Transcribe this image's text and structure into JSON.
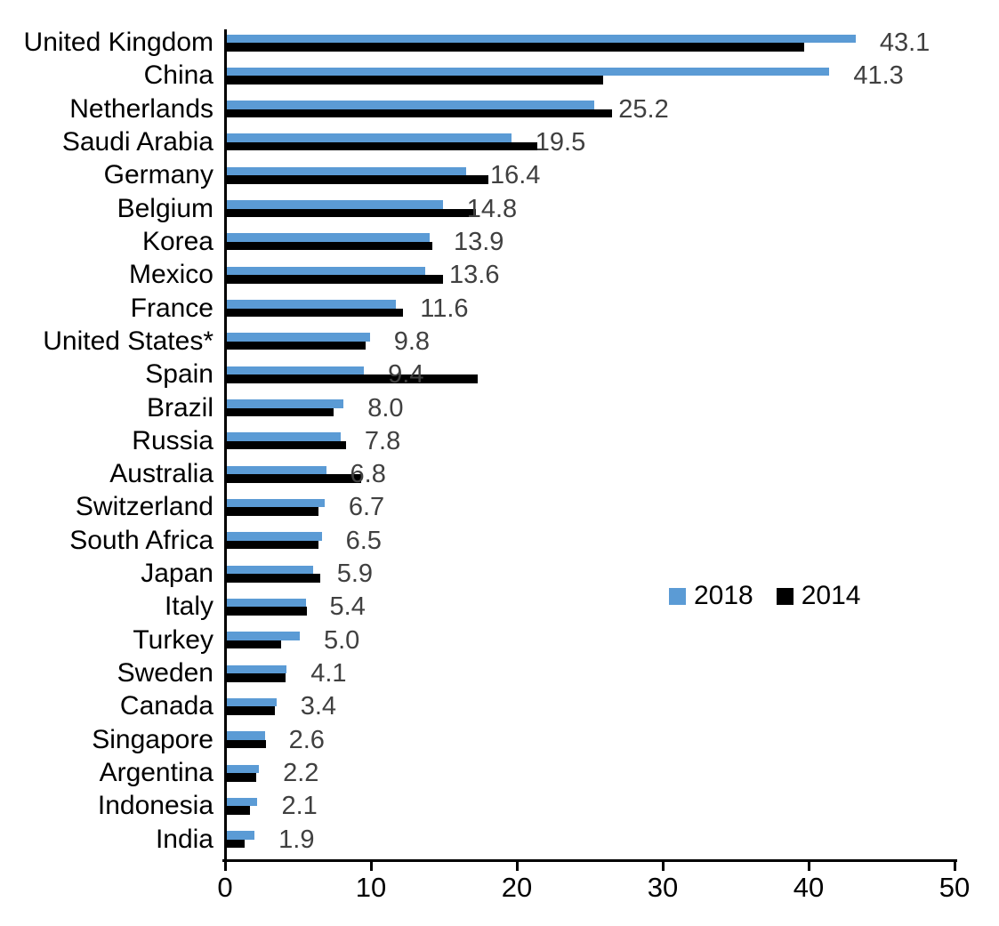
{
  "chart_data": {
    "type": "bar",
    "orientation": "horizontal",
    "title": "",
    "xlabel": "",
    "ylabel": "",
    "xlim": [
      0,
      50
    ],
    "x_ticks": [
      "0",
      "10",
      "20",
      "30",
      "40",
      "50"
    ],
    "grid": false,
    "legend_position": "middle-right",
    "categories": [
      "United Kingdom",
      "China",
      "Netherlands",
      "Saudi Arabia",
      "Germany",
      "Belgium",
      "Korea",
      "Mexico",
      "France",
      "United States*",
      "Spain",
      "Brazil",
      "Russia",
      "Australia",
      "Switzerland",
      "South Africa",
      "Japan",
      "Italy",
      "Turkey",
      "Sweden",
      "Canada",
      "Singapore",
      "Argentina",
      "Indonesia",
      "India"
    ],
    "series": [
      {
        "name": "2018",
        "color": "#5B9BD5",
        "values": [
          43.1,
          41.3,
          25.2,
          19.5,
          16.4,
          14.8,
          13.9,
          13.6,
          11.6,
          9.8,
          9.4,
          8.0,
          7.8,
          6.8,
          6.7,
          6.5,
          5.9,
          5.4,
          5.0,
          4.1,
          3.4,
          2.6,
          2.2,
          2.1,
          1.9
        ]
      },
      {
        "name": "2014",
        "color": "#000000",
        "values": [
          39.6,
          25.8,
          26.4,
          21.3,
          17.9,
          17.1,
          14.1,
          14.8,
          12.1,
          9.5,
          17.2,
          7.3,
          8.2,
          9.2,
          6.3,
          6.3,
          6.4,
          5.5,
          3.7,
          4.0,
          3.3,
          2.7,
          2.0,
          1.6,
          1.2
        ]
      }
    ],
    "value_labels": [
      "43.1",
      "41.3",
      "25.2",
      "19.5",
      "16.4",
      "14.8",
      "13.9",
      "13.6",
      "11.6",
      "9.8",
      "9.4",
      "8.0",
      "7.8",
      "6.8",
      "6.7",
      "6.5",
      "5.9",
      "5.4",
      "5.0",
      "4.1",
      "3.4",
      "2.6",
      "2.2",
      "2.1",
      "1.9"
    ],
    "value_labels_series": "2018"
  },
  "colors": {
    "series_2018": "#5B9BD5",
    "series_2014": "#000000",
    "value_label_text": "#404040",
    "axis_text": "#000000",
    "axis_line": "#000000",
    "background": "#ffffff"
  },
  "legend": {
    "items": [
      {
        "label": "2018",
        "color": "#5B9BD5"
      },
      {
        "label": "2014",
        "color": "#000000"
      }
    ]
  }
}
